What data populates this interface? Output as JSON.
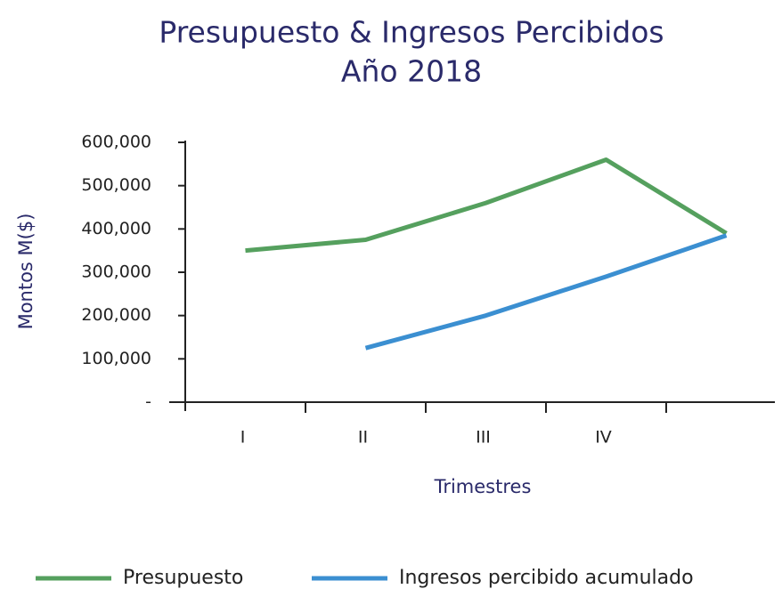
{
  "chart_data": {
    "type": "line",
    "title": "Presupuesto & Ingresos Percibidos",
    "subtitle": "Año 2018",
    "x_label": "Trimestres",
    "y_label": "Montos M($)",
    "categories": [
      "I",
      "II",
      "III",
      "IV",
      null
    ],
    "series": [
      {
        "name": "Presupuesto",
        "color": "#55a05e",
        "values": [
          350000,
          375000,
          460000,
          560000,
          390000
        ]
      },
      {
        "name": "Ingresos percibido acumulado",
        "color": "#3b8fd1",
        "values": [
          null,
          125000,
          200000,
          290000,
          385000
        ]
      }
    ],
    "ylim": [
      0,
      600000
    ],
    "yticks": [
      {
        "value": 0,
        "label": "-"
      },
      {
        "value": 100000,
        "label": "100,000"
      },
      {
        "value": 200000,
        "label": "200,000"
      },
      {
        "value": 300000,
        "label": "300,000"
      },
      {
        "value": 400000,
        "label": "400,000"
      },
      {
        "value": 500000,
        "label": "500,000"
      },
      {
        "value": 600000,
        "label": "600,000"
      }
    ],
    "grid": false,
    "legend": "bottom"
  }
}
